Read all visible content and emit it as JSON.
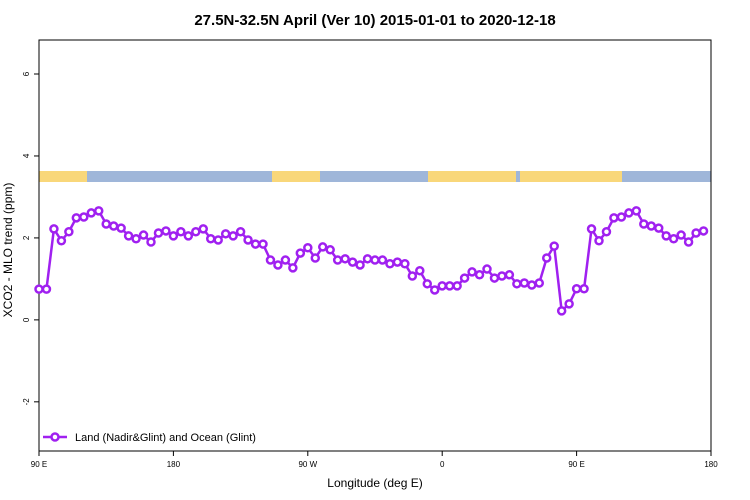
{
  "chart_data": {
    "type": "line",
    "title": "27.5N-32.5N April (Ver 10)   2015-01-01 to 2020-12-18",
    "x_label": "Longitude (deg E)",
    "y_label": "XCO2 - MLO trend (ppm)",
    "x": [
      90,
      95,
      100,
      105,
      110,
      115,
      120,
      125,
      130,
      135,
      140,
      145,
      150,
      155,
      160,
      165,
      170,
      175,
      180,
      185,
      190,
      195,
      200,
      205,
      210,
      215,
      220,
      225,
      230,
      235,
      240,
      245,
      250,
      255,
      260,
      265,
      270,
      275,
      280,
      285,
      290,
      295,
      300,
      305,
      310,
      315,
      320,
      325,
      330,
      335,
      340,
      345,
      350,
      355,
      360,
      365,
      370,
      375,
      380,
      385,
      390,
      395,
      400,
      405,
      410,
      415,
      420,
      425,
      430,
      435,
      440,
      445,
      450,
      455,
      460,
      465,
      470,
      475,
      480,
      485,
      490,
      495,
      500,
      505,
      510,
      515,
      520,
      525,
      530,
      535
    ],
    "series": [
      {
        "name": "Land (Nadir&Glint) and Ocean (Glint)",
        "color": "#a020f0",
        "values": [
          0.75,
          0.75,
          2.22,
          1.93,
          2.15,
          2.49,
          2.51,
          2.61,
          2.66,
          2.34,
          2.29,
          2.24,
          2.05,
          1.98,
          2.07,
          1.9,
          2.12,
          2.17,
          2.05,
          2.15,
          2.05,
          2.15,
          2.22,
          1.98,
          1.95,
          2.1,
          2.05,
          2.15,
          1.95,
          1.85,
          1.85,
          1.46,
          1.34,
          1.46,
          1.27,
          1.63,
          1.76,
          1.51,
          1.78,
          1.71,
          1.46,
          1.49,
          1.41,
          1.34,
          1.49,
          1.46,
          1.46,
          1.37,
          1.41,
          1.37,
          1.07,
          1.2,
          0.88,
          0.73,
          0.83,
          0.83,
          0.83,
          1.02,
          1.17,
          1.1,
          1.24,
          1.02,
          1.07,
          1.1,
          0.88,
          0.9,
          0.85,
          0.9,
          1.51,
          1.8,
          0.22,
          0.39,
          0.76,
          0.76,
          2.22,
          1.93,
          2.15,
          2.49,
          2.51,
          2.61,
          2.66,
          2.34,
          2.29,
          2.24,
          2.05,
          1.98,
          2.07,
          1.9,
          2.12,
          2.17
        ]
      }
    ],
    "xlim": [
      90,
      540
    ],
    "xticks": [
      {
        "value": 90,
        "label": "90 E"
      },
      180,
      {
        "value": 270,
        "label": "90 W"
      },
      {
        "value": 360,
        "label": "0"
      },
      {
        "value": 450,
        "label": "90 E"
      },
      180
    ],
    "ylim": [
      -3.2,
      6.83
    ],
    "yticks": [
      -2,
      0,
      2,
      4,
      6
    ],
    "legend": "bottom-left"
  }
}
